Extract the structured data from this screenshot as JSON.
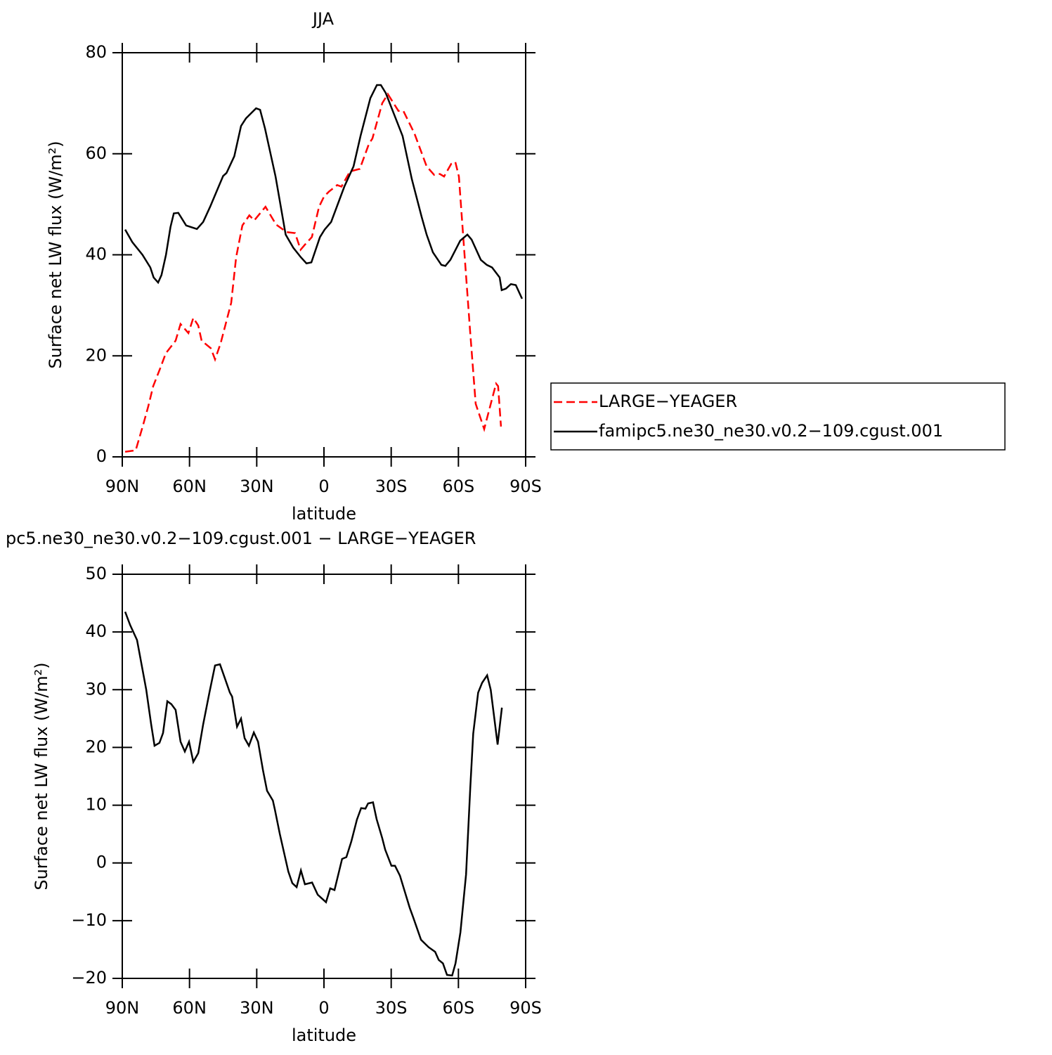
{
  "chart_data": [
    {
      "type": "line",
      "title": "JJA",
      "x_label": "latitude",
      "y_label": "Surface net LW flux (W/m²)",
      "xlim": [
        90,
        -90
      ],
      "xticks": [
        {
          "value": 90,
          "label": "90N"
        },
        {
          "value": 60,
          "label": "60N"
        },
        {
          "value": 30,
          "label": "30N"
        },
        0,
        {
          "value": -30,
          "label": "30S"
        },
        {
          "value": -60,
          "label": "60S"
        },
        {
          "value": -90,
          "label": "90S"
        }
      ],
      "ylim": [
        0,
        80
      ],
      "yticks": [
        0,
        20,
        40,
        60,
        80
      ],
      "legend": "right",
      "series": [
        {
          "name": "LARGE−YEAGER",
          "color": "#ff0000",
          "dash": true,
          "x": [
            88.7,
            84,
            80.9,
            78.4,
            76.2,
            73.1,
            70.6,
            66.2,
            64,
            60.5,
            58.3,
            56.1,
            54.6,
            50.5,
            48.6,
            46.1,
            41.4,
            39.2,
            36.4,
            33.3,
            31.1,
            26.1,
            21.4,
            16.7,
            12.9,
            10.4,
            8.5,
            5.4,
            2.2,
            0,
            -2.2,
            -5.9,
            -7.8,
            -11.6,
            -16,
            -20.1,
            -21.6,
            -26,
            -28.5,
            -33.2,
            -35.4,
            -40.4,
            -45.8,
            -49.2,
            -51.7,
            -53.6,
            -56.8,
            -58.6,
            -60.2,
            -62.4,
            -65.2,
            -67.7,
            -71.5,
            -76.8,
            -77.7,
            -79
          ],
          "values": [
            1,
            1.3,
            6,
            10,
            14,
            17.5,
            20.5,
            23,
            26.3,
            24.5,
            27.5,
            26,
            23,
            21.5,
            19.3,
            22.5,
            30.5,
            39.5,
            45.8,
            47.8,
            46.8,
            49.5,
            46,
            44.5,
            44.3,
            41,
            42,
            43.5,
            49.5,
            51.5,
            52.5,
            53.8,
            53.5,
            56.5,
            57,
            62,
            63,
            70,
            71.8,
            68.5,
            68.5,
            64,
            57.5,
            55.8,
            56,
            55.5,
            58,
            58.4,
            55.5,
            42,
            25,
            10.5,
            5.5,
            14.5,
            14,
            6
          ]
        },
        {
          "name": "famipc5.ne30_ne30.v0.2−109.cgust.001",
          "color": "#000000",
          "dash": false,
          "x": [
            88.7,
            85.5,
            81,
            77.5,
            76,
            74,
            72.5,
            70.5,
            68.5,
            67,
            65,
            61.5,
            56.7,
            53.9,
            50.8,
            47,
            45,
            43.5,
            40,
            37,
            34.8,
            31.9,
            30.3,
            28.5,
            26.3,
            21.6,
            17.1,
            13.7,
            10.3,
            7.8,
            5.6,
            1.8,
            -0.3,
            -3.2,
            -9.1,
            -13.2,
            -16.3,
            -20.7,
            -23.6,
            -25.4,
            -27.6,
            -35.1,
            -39.2,
            -43.6,
            -45.8,
            -48.6,
            -52.4,
            -54.2,
            -56.4,
            -60.8,
            -64,
            -65.9,
            -70,
            -72.7,
            -75,
            -78.4,
            -79.3,
            -81.2,
            -83.4,
            -85.6,
            -88.4
          ],
          "values": [
            45,
            42.5,
            40,
            37.5,
            35.5,
            34.5,
            36,
            40,
            45.5,
            48.2,
            48.3,
            45.8,
            45.1,
            46.5,
            49.5,
            53.5,
            55.6,
            56.2,
            59.5,
            65.5,
            67,
            68.3,
            69,
            68.7,
            65,
            55.5,
            44,
            41.4,
            39.5,
            38.3,
            38.5,
            43.5,
            45,
            46.5,
            53.5,
            57.5,
            63.5,
            71,
            73.6,
            73.6,
            72,
            63.5,
            55,
            47.5,
            44,
            40.5,
            38,
            37.8,
            39,
            42.8,
            44,
            43,
            39,
            38,
            37.5,
            35.5,
            33,
            33.3,
            34.2,
            34,
            31.3
          ]
        }
      ]
    },
    {
      "type": "line",
      "title": "pc5.ne30_ne30.v0.2−109.cgust.001 − LARGE−YEAGER",
      "x_label": "latitude",
      "y_label": "Surface net LW flux (W/m²)",
      "xlim": [
        90,
        -90
      ],
      "xticks": [
        {
          "value": 90,
          "label": "90N"
        },
        {
          "value": 60,
          "label": "60N"
        },
        {
          "value": 30,
          "label": "30N"
        },
        0,
        {
          "value": -30,
          "label": "30S"
        },
        {
          "value": -60,
          "label": "60S"
        },
        {
          "value": -90,
          "label": "90S"
        }
      ],
      "ylim": [
        -20,
        50
      ],
      "yticks": [
        {
          "value": -20,
          "label": "−20"
        },
        {
          "value": -10,
          "label": "−10"
        },
        0,
        10,
        20,
        30,
        40,
        50
      ],
      "series": [
        {
          "color": "#000000",
          "dash": false,
          "x": [
            88.7,
            86.5,
            83.4,
            79.3,
            77.1,
            75.6,
            73.4,
            71.8,
            69.9,
            68.1,
            66.2,
            64,
            62.1,
            60.2,
            58.3,
            56.1,
            53.9,
            51.1,
            48.6,
            46.4,
            44.5,
            42,
            41,
            38.8,
            37,
            35.4,
            33.5,
            31.3,
            29.4,
            27.2,
            25.4,
            22.8,
            21.9,
            19.7,
            15.9,
            14.1,
            12.2,
            10.3,
            8.5,
            5.3,
            2.8,
            -0.9,
            -2.8,
            -4.7,
            -8.1,
            -10,
            -12.2,
            -14.7,
            -16.6,
            -18.5,
            -19.7,
            -21.9,
            -23.5,
            -26,
            -27.3,
            -30.1,
            -31.7,
            -33.9,
            -38.3,
            -39.8,
            -43.3,
            -46.7,
            -49.6,
            -51.2,
            -53.1,
            -54.9,
            -57.2,
            -58.7,
            -60.9,
            -63.4,
            -65.3,
            -66.6,
            -68.8,
            -70.6,
            -72.8,
            -74.4,
            -77.5,
            -79.4
          ],
          "values": [
            43.5,
            41.2,
            38.6,
            30,
            24,
            20.3,
            20.8,
            22.5,
            28,
            27.5,
            26.5,
            21,
            19.3,
            21,
            17.5,
            19,
            24,
            29.5,
            34.2,
            34.4,
            32.3,
            29.5,
            28.8,
            23.6,
            25,
            21.6,
            20.3,
            22.6,
            21,
            16,
            12.5,
            10.8,
            9.2,
            5,
            -1.5,
            -3.5,
            -4.2,
            -1.3,
            -3.7,
            -3.4,
            -5.5,
            -6.8,
            -4.4,
            -4.7,
            0.7,
            1,
            3.7,
            7.5,
            9.5,
            9.4,
            10.3,
            10.5,
            7.6,
            4.3,
            2.3,
            -0.5,
            -0.5,
            -2.2,
            -7.8,
            -9.4,
            -13.3,
            -14.6,
            -15.4,
            -16.8,
            -17.4,
            -19.4,
            -19.5,
            -17.4,
            -12,
            -2,
            13,
            22.4,
            29.5,
            31.2,
            32.5,
            30,
            20.5,
            26.9
          ]
        }
      ]
    }
  ]
}
